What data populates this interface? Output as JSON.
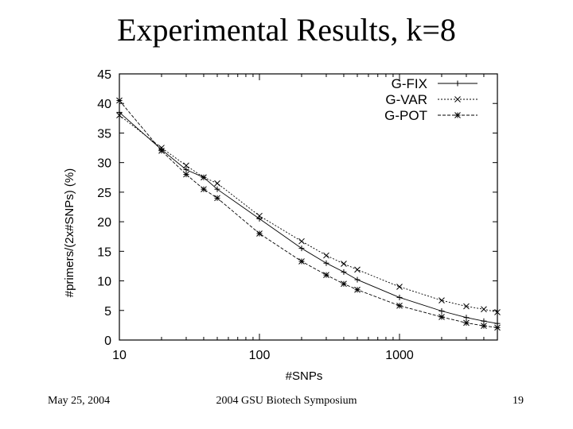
{
  "slide": {
    "title": "Experimental Results, k=8",
    "footer_left": "May 25, 2004",
    "footer_center": "2004 GSU Biotech Symposium",
    "footer_right": "19"
  },
  "chart_data": {
    "type": "line",
    "xlabel": "#SNPs",
    "ylabel": "#primers/(2x#SNPs) (%)",
    "xscale": "log",
    "xlim": [
      10,
      5000
    ],
    "ylim": [
      0,
      45
    ],
    "x_ticks": [
      10,
      100,
      1000
    ],
    "x_tick_labels": [
      "10",
      "100",
      "1000"
    ],
    "y_ticks": [
      0,
      5,
      10,
      15,
      20,
      25,
      30,
      35,
      40,
      45
    ],
    "y_tick_labels": [
      "0",
      "5",
      "10",
      "15",
      "20",
      "25",
      "30",
      "35",
      "40",
      "45"
    ],
    "grid": false,
    "legend_position": "top-right",
    "x": [
      10,
      20,
      30,
      40,
      50,
      100,
      200,
      300,
      400,
      500,
      1000,
      2000,
      3000,
      4000,
      5000
    ],
    "series": [
      {
        "name": "G-FIX",
        "marker": "+",
        "dash": "none",
        "values": [
          38.5,
          32.2,
          28.8,
          27.5,
          25.5,
          20.5,
          15.5,
          13.0,
          11.5,
          10.2,
          7.2,
          4.9,
          3.8,
          3.2,
          2.8
        ]
      },
      {
        "name": "G-VAR",
        "marker": "x",
        "dash": "2,2",
        "values": [
          38.0,
          32.5,
          29.5,
          27.5,
          26.5,
          21.0,
          16.7,
          14.3,
          12.9,
          11.9,
          9.0,
          6.7,
          5.7,
          5.2,
          4.7
        ]
      },
      {
        "name": "G-POT",
        "marker": "*",
        "dash": "4,2",
        "values": [
          40.5,
          32.0,
          28.0,
          25.5,
          24.0,
          18.0,
          13.3,
          11.0,
          9.5,
          8.5,
          5.8,
          3.9,
          2.9,
          2.4,
          2.1
        ]
      }
    ]
  }
}
